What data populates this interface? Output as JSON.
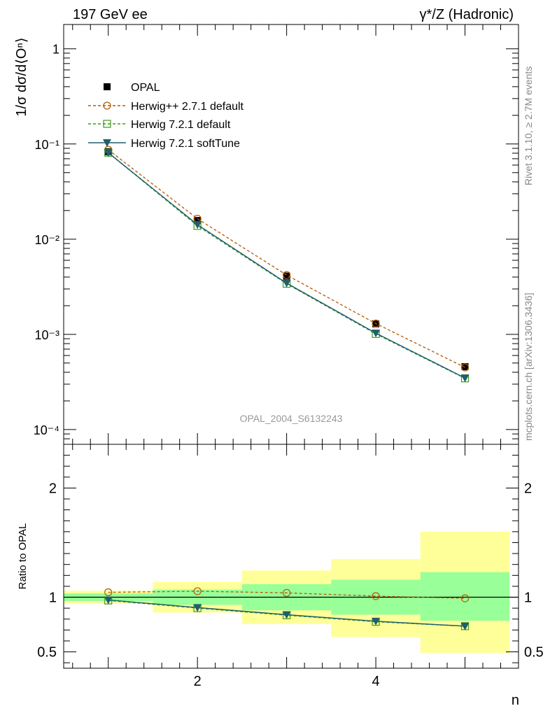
{
  "header": {
    "left_label": "197 GeV ee",
    "right_label": "γ*/Z (Hadronic)"
  },
  "side_notes": {
    "rivet": "Rivet 3.1.10, ≥ 2.7M events",
    "mcplots": "mcplots.cern.ch [arXiv:1306.3436]"
  },
  "colors": {
    "opal": "#000000",
    "herwigpp": "#b35900",
    "herwig_default": "#3f9a1a",
    "herwig_soft": "#1f5f6e",
    "band_inner": "#99ff99",
    "band_outer": "#ffff99"
  },
  "chart_data": [
    {
      "type": "line",
      "ylabel": "1/σ dσ/d⟨Oⁿ⟩",
      "xlabel": "n",
      "yscale": "log",
      "ylim": [
        7e-05,
        1.8
      ],
      "xlim": [
        0.5,
        5.6
      ],
      "y_tick_labels": [
        "1",
        "10⁻¹",
        "10⁻²",
        "10⁻³",
        "10⁻⁴"
      ],
      "legend_position": "top-left",
      "watermark": "OPAL_2004_S6132243",
      "x": [
        1,
        2,
        3,
        4,
        5
      ],
      "series": [
        {
          "name": "OPAL",
          "values": [
            0.083,
            0.0157,
            0.0041,
            0.00129,
            0.000458
          ],
          "marker": "filled-square",
          "color": "#000000"
        },
        {
          "name": "Herwig++ 2.7.1 default",
          "values": [
            0.087,
            0.0164,
            0.0042,
            0.0013,
            0.00045
          ],
          "marker": "open-circle",
          "style": "dashed",
          "color": "#b35900"
        },
        {
          "name": "Herwig 7.2.1 default",
          "values": [
            0.081,
            0.0138,
            0.0034,
            0.00101,
            0.000345
          ],
          "marker": "open-square",
          "style": "dashed",
          "color": "#3f9a1a"
        },
        {
          "name": "Herwig 7.2.1 softTune",
          "values": [
            0.081,
            0.0142,
            0.00345,
            0.00103,
            0.000348
          ],
          "marker": "filled-triangle-down",
          "style": "solid",
          "color": "#1f5f6e"
        }
      ]
    },
    {
      "type": "line",
      "ylabel": "Ratio to OPAL",
      "xlabel": "n",
      "ylim": [
        0.35,
        2.4
      ],
      "xlim": [
        0.5,
        5.6
      ],
      "y_ticks": [
        0.5,
        1,
        2
      ],
      "y_tick_labels": [
        "0.5",
        "1",
        "2"
      ],
      "x_ticks": [
        2,
        4
      ],
      "x_tick_labels": [
        "2",
        "4"
      ],
      "x": [
        1,
        2,
        3,
        4,
        5
      ],
      "bands": [
        {
          "x_lo": 0.5,
          "x_hi": 1.5,
          "inner": [
            0.965,
            1.035
          ],
          "outer": [
            0.94,
            1.06
          ]
        },
        {
          "x_lo": 1.5,
          "x_hi": 2.5,
          "inner": [
            0.93,
            1.07
          ],
          "outer": [
            0.86,
            1.14
          ]
        },
        {
          "x_lo": 2.5,
          "x_hi": 3.5,
          "inner": [
            0.88,
            1.12
          ],
          "outer": [
            0.755,
            1.245
          ]
        },
        {
          "x_lo": 3.5,
          "x_hi": 4.5,
          "inner": [
            0.84,
            1.16
          ],
          "outer": [
            0.635,
            1.35
          ]
        },
        {
          "x_lo": 4.5,
          "x_hi": 5.5,
          "inner": [
            0.785,
            1.23
          ],
          "outer": [
            0.49,
            1.6
          ]
        }
      ],
      "series": [
        {
          "name": "Herwig++ 2.7.1 default",
          "values": [
            1.045,
            1.055,
            1.04,
            1.01,
            0.99
          ],
          "marker": "open-circle",
          "style": "dashed",
          "color": "#b35900"
        },
        {
          "name": "Herwig 7.2.1 default",
          "values": [
            0.97,
            0.9,
            0.835,
            0.775,
            0.735
          ],
          "marker": "open-square",
          "style": "dashed",
          "color": "#3f9a1a"
        },
        {
          "name": "Herwig 7.2.1 softTune",
          "values": [
            0.975,
            0.905,
            0.84,
            0.78,
            0.735
          ],
          "marker": "filled-triangle-down",
          "style": "solid",
          "color": "#1f5f6e"
        }
      ]
    }
  ]
}
